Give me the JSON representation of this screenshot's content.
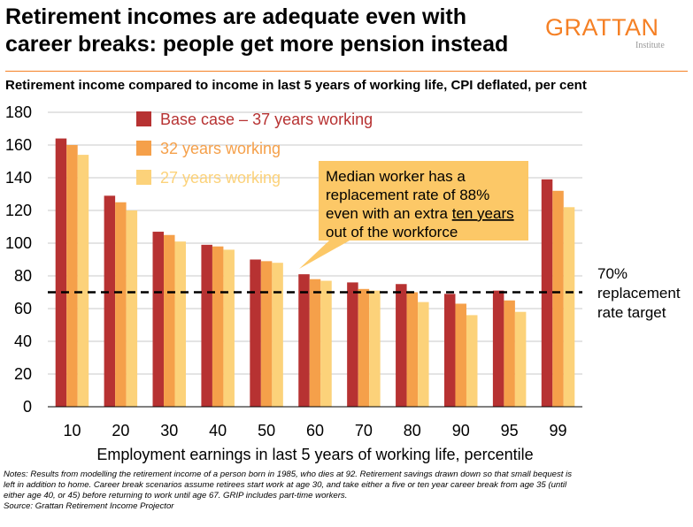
{
  "header": {
    "title_line1": "Retirement incomes are adequate even with",
    "title_line2": "career breaks: people get more pension instead",
    "subtitle": "Retirement income compared to income in last 5 years of working life, CPI deflated, per cent",
    "logo_main": "GRATTAN",
    "logo_sub": "Institute"
  },
  "colors": {
    "base": "#b73232",
    "y32": "#f5a04a",
    "y27": "#fcd27a",
    "accent": "#f58025",
    "callout": "#fcc867",
    "grid": "#c8c8c8"
  },
  "chart_data": {
    "type": "bar",
    "categories": [
      "10",
      "20",
      "30",
      "40",
      "50",
      "60",
      "70",
      "80",
      "90",
      "95",
      "99"
    ],
    "series": [
      {
        "name": "Base case – 37 years working",
        "values": [
          164,
          129,
          107,
          99,
          90,
          81,
          76,
          75,
          69,
          71,
          139
        ]
      },
      {
        "name": "32 years working",
        "values": [
          160,
          125,
          105,
          98,
          89,
          78,
          72,
          70,
          63,
          65,
          132
        ]
      },
      {
        "name": "27 years working",
        "values": [
          154,
          120,
          101,
          96,
          88,
          77,
          71,
          64,
          56,
          58,
          122
        ]
      }
    ],
    "xlabel": "Employment earnings in last 5 years of working life, percentile",
    "ylabel": "",
    "ylim": [
      0,
      180
    ],
    "yticks": [
      "0",
      "20",
      "40",
      "60",
      "80",
      "100",
      "120",
      "140",
      "160",
      "180"
    ],
    "grid": true,
    "legend": "top-left",
    "reference_line": {
      "value": 70,
      "label_lines": [
        "70%",
        "replacement",
        "rate target"
      ]
    },
    "annotation": {
      "line1": "Median worker has a",
      "line2": "replacement rate of 88%",
      "line3_prefix": "even with an extra ",
      "line3_underlined": "ten years",
      "line4": "out of the workforce"
    }
  },
  "notes": {
    "line1": "Notes: Results from modelling the retirement income of a person born in 1985, who dies at 92. Retirement savings drawn down so that small bequest is",
    "line2": "left in addition to home. Career break scenarios assume retirees start work at age 30, and take either a five or ten year career break from age 35 (until",
    "line3": "either age  40, or 45) before returning to work until age 67. GRIP includes part-time workers.",
    "line4": "Source: Grattan Retirement Income Projector"
  }
}
